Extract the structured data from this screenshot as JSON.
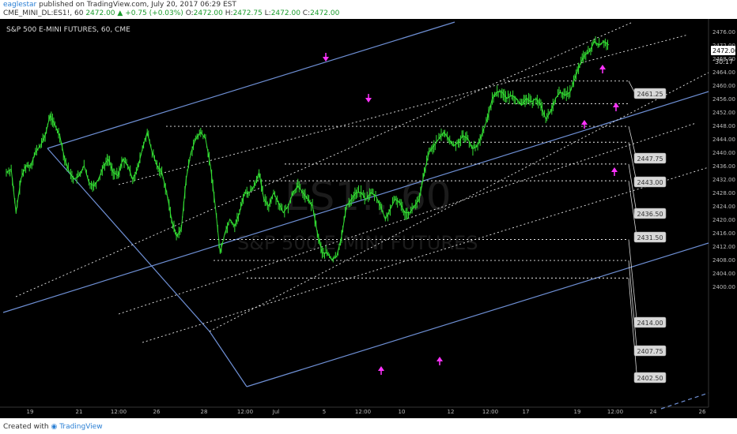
{
  "header": {
    "user": "eaglestar",
    "published": "published on TradingView.com, July 20, 2017 06:29 EST",
    "symbol": "CME_MINI_DL:ES1!, 60",
    "last": "2472.00",
    "change": "+0.75 (+0.03%)",
    "o_label": "O:",
    "o": "2472.00",
    "h_label": "H:",
    "h": "2472.75",
    "l_label": "L:",
    "l": "2472.00",
    "c_label": "C:",
    "c": "2472.00"
  },
  "chart_title": "S&P 500 E-MINI FUTURES, 60, CME",
  "watermark": {
    "symbol": "ES1!, 60",
    "name": "S&P 500 E-MINI FUTURES"
  },
  "footer": {
    "created_with": "Created with",
    "brand": "TradingView"
  },
  "colors": {
    "background": "#000000",
    "candles": "#33dd33",
    "channel": "#6e8fd4",
    "arrows": "#ff33ff",
    "axis_text": "#bbbbbb"
  },
  "chart_data": {
    "type": "line",
    "ylim": [
      2399,
      2478
    ],
    "y_ticks": [
      2400,
      2404,
      2408,
      2412,
      2416,
      2420,
      2424,
      2428,
      2432,
      2436,
      2440,
      2444,
      2448,
      2452,
      2456,
      2460,
      2464,
      2468,
      2472,
      2476
    ],
    "x_ticks": [
      "19",
      "21",
      "12:00",
      "26",
      "28",
      "12:00",
      "Jul",
      "5",
      "12:00",
      "10",
      "12",
      "12:00",
      "17",
      "19",
      "12:00",
      "24",
      "26"
    ],
    "current_price": "2472.00",
    "countdown": "30:17",
    "level_labels": [
      "2461.25",
      "2447.75",
      "2443.00",
      "2436.50",
      "2431.50",
      "2414.00",
      "2407.75",
      "2402.50"
    ],
    "price_series": [
      2434,
      2435,
      2422,
      2432,
      2436,
      2436,
      2440,
      2442,
      2445,
      2451,
      2448,
      2445,
      2438,
      2434,
      2432,
      2433,
      2436,
      2431,
      2430,
      2432,
      2436,
      2438,
      2434,
      2433,
      2438,
      2436,
      2432,
      2435,
      2441,
      2446,
      2440,
      2436,
      2434,
      2428,
      2420,
      2415,
      2417,
      2432,
      2440,
      2444,
      2446,
      2444,
      2436,
      2424,
      2410,
      2416,
      2420,
      2418,
      2422,
      2428,
      2428,
      2430,
      2434,
      2426,
      2424,
      2428,
      2425,
      2422,
      2424,
      2428,
      2430,
      2428,
      2426,
      2424,
      2416,
      2410,
      2410,
      2408,
      2409,
      2415,
      2424,
      2426,
      2428,
      2428,
      2426,
      2428,
      2427,
      2424,
      2420,
      2423,
      2426,
      2425,
      2422,
      2422,
      2424,
      2426,
      2434,
      2440,
      2442,
      2444,
      2446,
      2444,
      2442,
      2443,
      2445,
      2444,
      2441,
      2442,
      2446,
      2450,
      2456,
      2458,
      2458,
      2456,
      2457,
      2456,
      2454,
      2456,
      2455,
      2456,
      2454,
      2450,
      2452,
      2456,
      2458,
      2457,
      2458,
      2462,
      2466,
      2469,
      2470,
      2473,
      2472,
      2473,
      2472
    ]
  }
}
